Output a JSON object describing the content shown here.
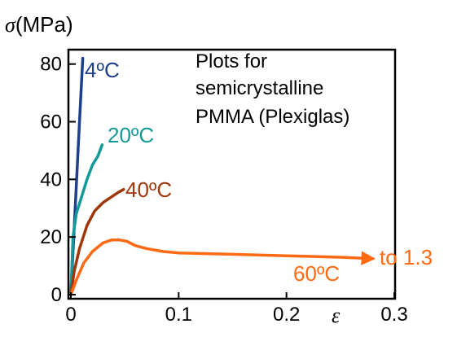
{
  "chart_data": {
    "type": "line",
    "ylabel_symbol": "σ",
    "ylabel_unit": "(MPa)",
    "xlabel": "ε",
    "xlim": [
      0,
      0.3
    ],
    "ylim": [
      0,
      85
    ],
    "xticks": [
      0,
      0.1,
      0.2,
      0.3
    ],
    "xtick_labels": [
      "0",
      "0.1",
      "0.2",
      "0.3"
    ],
    "yticks": [
      0,
      20,
      40,
      60,
      80
    ],
    "ytick_labels": [
      "0",
      "20",
      "40",
      "60",
      "80"
    ],
    "grid": false,
    "annotation": [
      "Plots for",
      "semicrystalline",
      "PMMA (Plexiglas)"
    ],
    "continuation_label": "to 1.3",
    "series": [
      {
        "name": "4ºC",
        "color": "#1f3f8f",
        "x": [
          0,
          0.004,
          0.008,
          0.011
        ],
        "y": [
          0,
          30,
          60,
          82
        ]
      },
      {
        "name": "20ºC",
        "color": "#139a98",
        "x": [
          0,
          0.002,
          0.005,
          0.01,
          0.015,
          0.02,
          0.025,
          0.029
        ],
        "y": [
          0,
          20,
          28,
          34,
          40,
          45,
          48,
          52
        ]
      },
      {
        "name": "40ºC",
        "color": "#a0370b",
        "x": [
          0,
          0.003,
          0.008,
          0.015,
          0.022,
          0.03,
          0.038,
          0.044,
          0.049
        ],
        "y": [
          0,
          8,
          16,
          24,
          29,
          32,
          34,
          35.5,
          36.5
        ]
      },
      {
        "name": "60ºC",
        "color": "#ff6a13",
        "x": [
          0,
          0.005,
          0.012,
          0.02,
          0.03,
          0.038,
          0.045,
          0.052,
          0.06,
          0.07,
          0.085,
          0.1,
          0.15,
          0.2,
          0.25,
          0.28
        ],
        "y": [
          0,
          5,
          11,
          15,
          18,
          19,
          19,
          18.5,
          17,
          16,
          15,
          14.5,
          14,
          13.5,
          13,
          12.5
        ]
      }
    ]
  }
}
